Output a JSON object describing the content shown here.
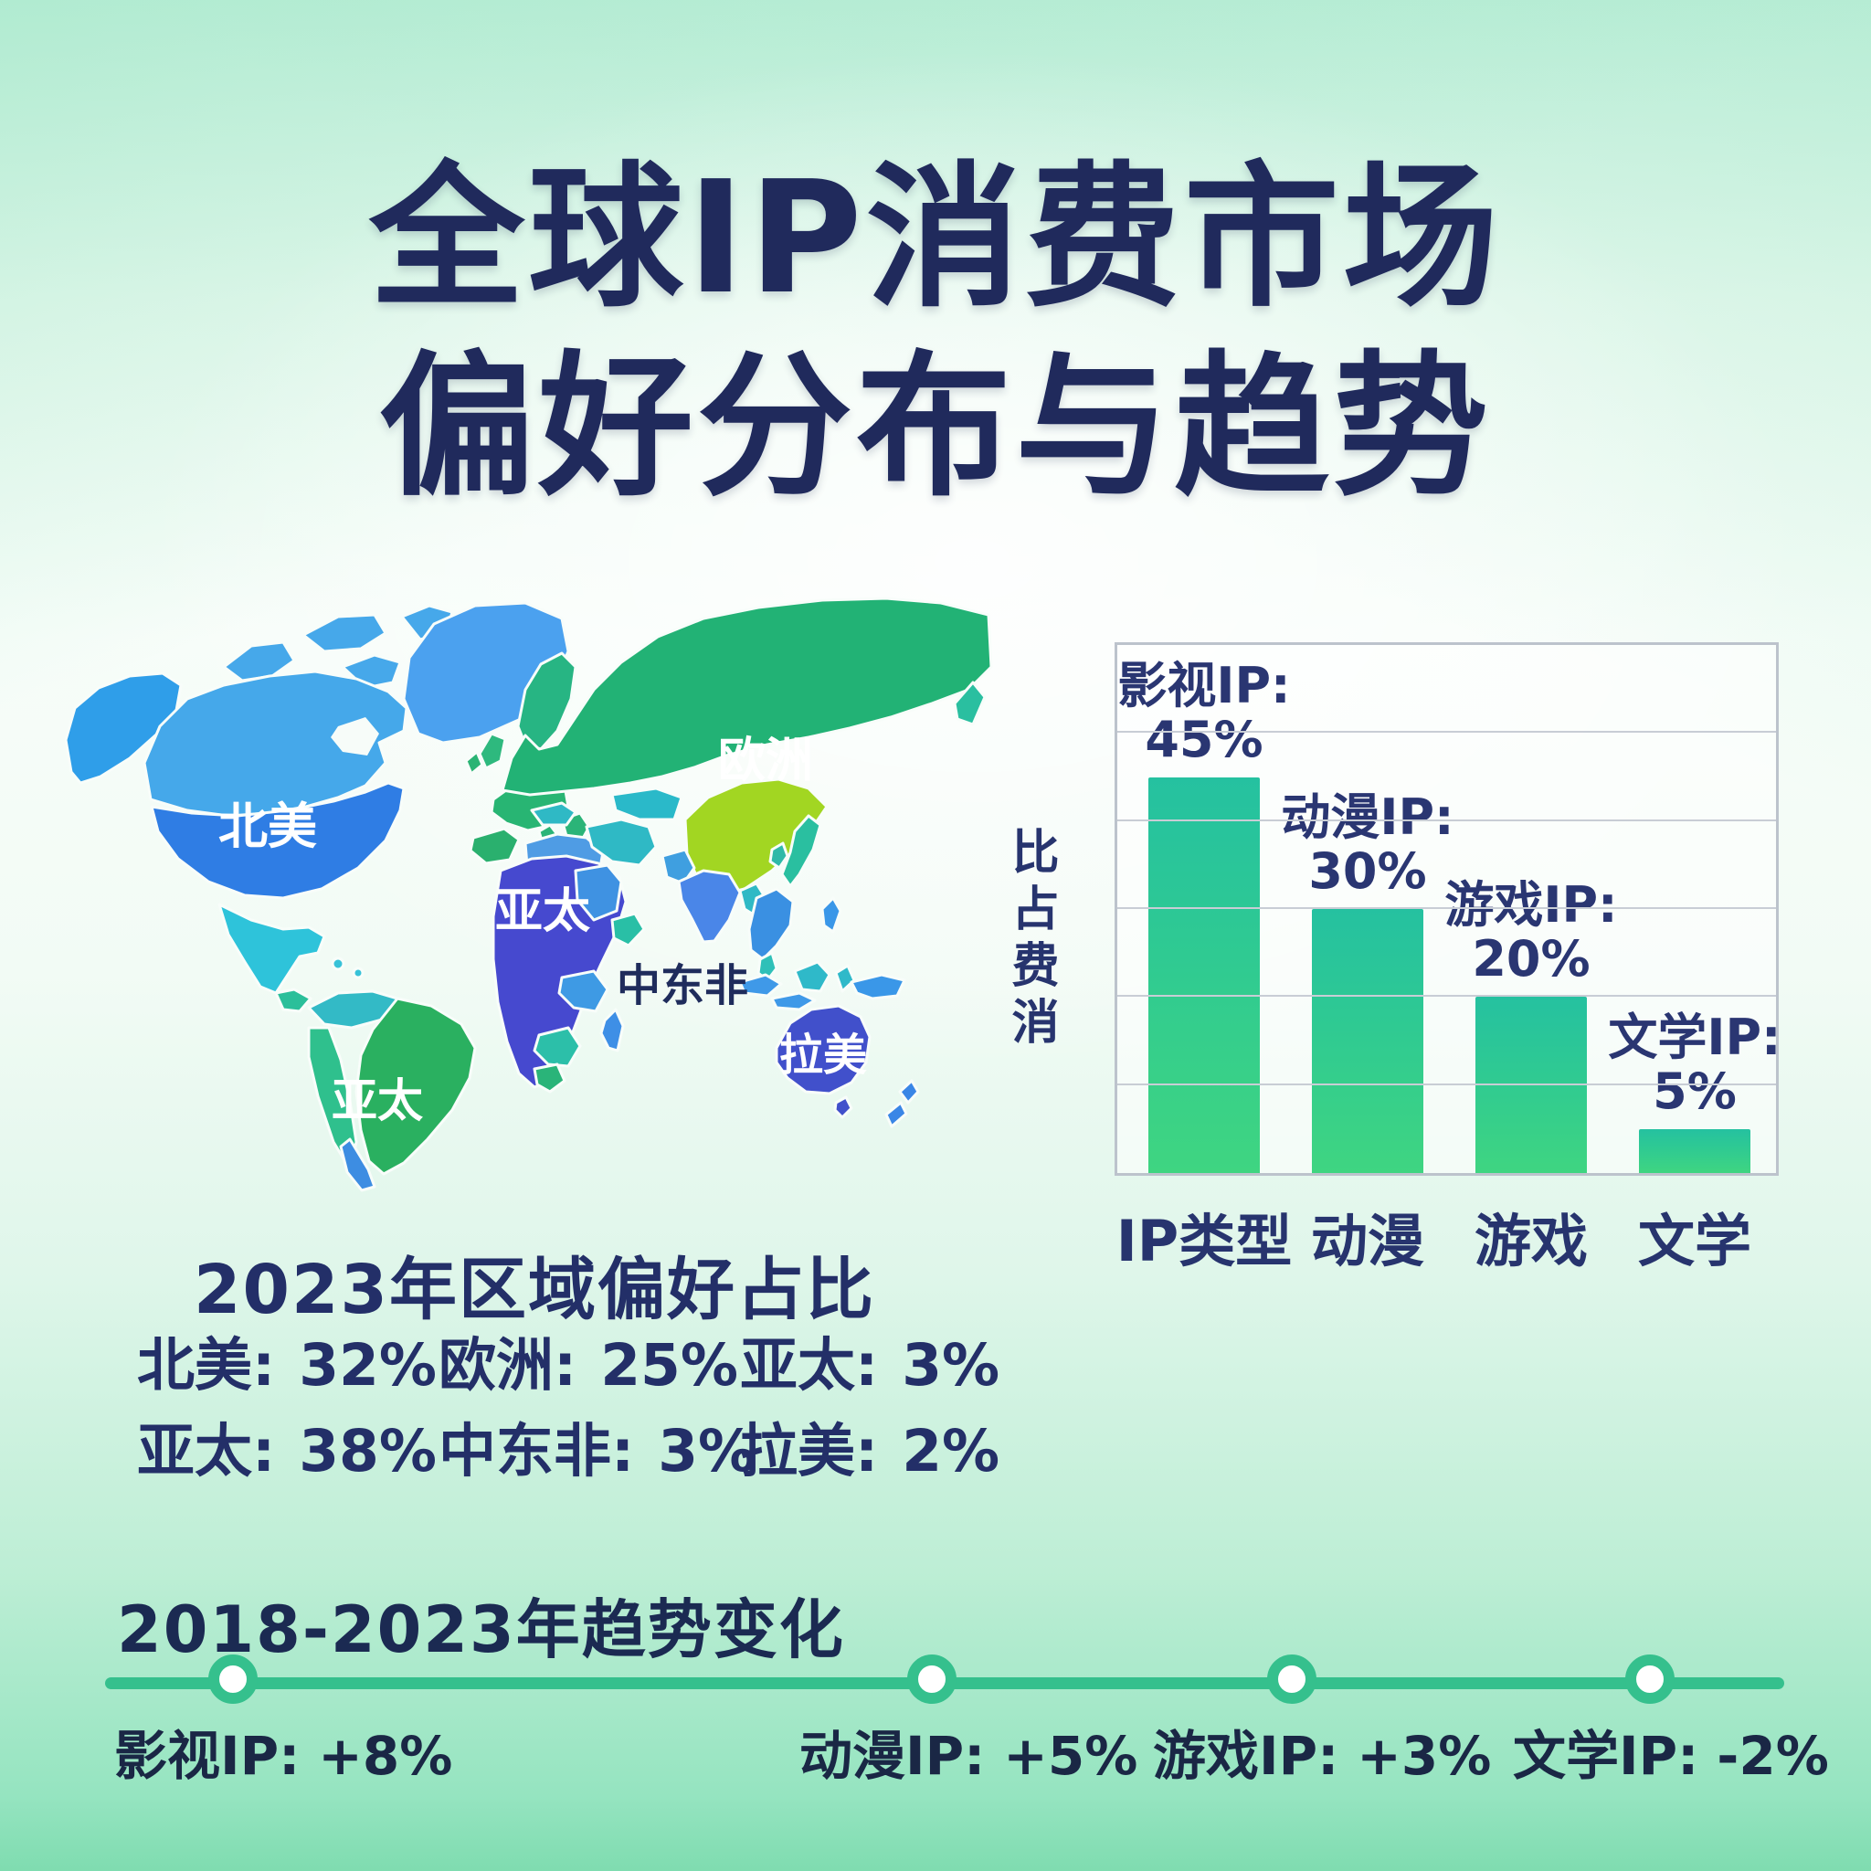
{
  "title": {
    "line1": "全球IP消费市场",
    "line2": "偏好分布与趋势"
  },
  "map": {
    "labels": {
      "north_america": "北美",
      "europe": "欧洲",
      "africa_apac": "亚太",
      "south_america_apac": "亚太",
      "mea": "中东非",
      "latam": "拉美"
    }
  },
  "chart_data": [
    {
      "type": "table",
      "title": "2023年区域偏好占比",
      "items": [
        {
          "label": "北美:",
          "value": "32%"
        },
        {
          "label": "欧洲:",
          "value": "25%"
        },
        {
          "label": "亚太:",
          "value": "3%"
        },
        {
          "label": "亚太:",
          "value": "38%"
        },
        {
          "label": "中东非:",
          "value": "3%"
        },
        {
          "label": "拉美:",
          "value": "2%"
        }
      ]
    },
    {
      "type": "bar",
      "title": "",
      "xlabel": "",
      "ylabel": "比占费消",
      "categories": [
        "IP类型",
        "动漫",
        "游戏",
        "文学"
      ],
      "values": [
        45,
        30,
        20,
        5
      ],
      "annotations": [
        {
          "label": "影视IP:",
          "value": "45%"
        },
        {
          "label": "动漫IP:",
          "value": "30%"
        },
        {
          "label": "游戏IP:",
          "value": "20%"
        },
        {
          "label": "文学IP:",
          "value": "5%"
        }
      ],
      "ylim": [
        0,
        60
      ],
      "grid_step": 10,
      "grid": "horizontal",
      "legend_position": "none",
      "bar_color_top": "#25c1a0",
      "bar_color_bottom": "#3fd581"
    },
    {
      "type": "timeline",
      "title": "2018-2023年趋势变化",
      "items": [
        {
          "label": "影视IP:",
          "value": "+8%"
        },
        {
          "label": "动漫IP:",
          "value": "+5%"
        },
        {
          "label": "游戏IP:",
          "value": "+3%"
        },
        {
          "label": "文学IP:",
          "value": "-2%"
        }
      ],
      "line_color": "#35c08d"
    }
  ],
  "colors": {
    "title_navy": "#202a5c",
    "text_navy": "#232f68",
    "timeline_green": "#35c08d",
    "bar_gradient_top": "#25c1a0",
    "bar_gradient_bottom": "#3fd581",
    "background_mint": "#bdeed5",
    "map_north_america_blue": "#2f7de4",
    "map_europe_green": "#22b275",
    "map_africa_indigo": "#4649cf",
    "map_china_yellow_green": "#a2d622",
    "map_australia_indigo": "#4150cb"
  }
}
